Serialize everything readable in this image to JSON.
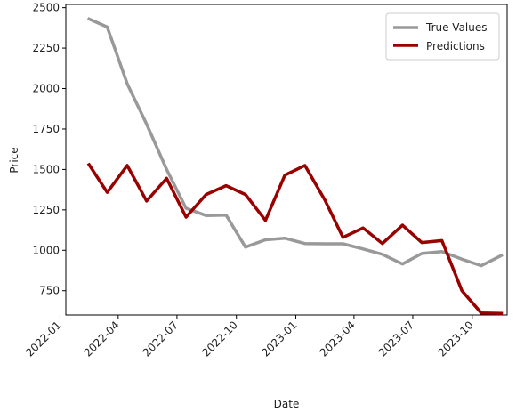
{
  "chart_data": {
    "type": "line",
    "title": "",
    "xlabel": "Date",
    "ylabel": "Price",
    "x": [
      "2022-02",
      "2022-03",
      "2022-04",
      "2022-05",
      "2022-06",
      "2022-07",
      "2022-08",
      "2022-09",
      "2022-10",
      "2022-11",
      "2022-12",
      "2023-01",
      "2023-02",
      "2023-03",
      "2023-04",
      "2023-05",
      "2023-06",
      "2023-07",
      "2023-08",
      "2023-09",
      "2023-10",
      "2023-11"
    ],
    "series": [
      {
        "name": "True Values",
        "color": "#999999",
        "values": [
          2430,
          2380,
          2030,
          1780,
          1500,
          1260,
          1215,
          1218,
          1020,
          1065,
          1075,
          1042,
          1040,
          1040,
          1008,
          975,
          915,
          980,
          992,
          945,
          905,
          968
        ]
      },
      {
        "name": "Predictions",
        "color": "#990000",
        "values": [
          1530,
          1358,
          1525,
          1305,
          1445,
          1205,
          1345,
          1400,
          1345,
          1185,
          1465,
          1525,
          1310,
          1080,
          1138,
          1042,
          1155,
          1048,
          1060,
          750,
          612,
          610
        ]
      }
    ],
    "xlim": [
      "2022-01-10",
      "2023-11-24"
    ],
    "ylim": [
      600,
      2520
    ],
    "x_ticks": [
      "2022-01",
      "2022-04",
      "2022-07",
      "2022-10",
      "2023-01",
      "2023-04",
      "2023-07",
      "2023-10"
    ],
    "y_ticks": [
      750,
      1000,
      1250,
      1500,
      1750,
      2000,
      2250,
      2500
    ],
    "legend_position": "top-right",
    "grid": false
  }
}
